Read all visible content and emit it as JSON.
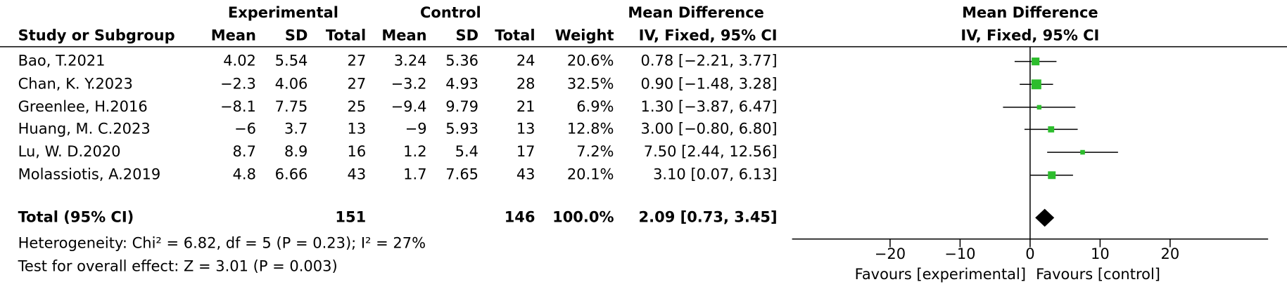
{
  "table": {
    "group_headers": [
      "Experimental",
      "Control",
      "Mean Difference"
    ],
    "columns": [
      "Study or Subgroup",
      "Mean",
      "SD",
      "Total",
      "Mean",
      "SD",
      "Total",
      "Weight",
      "IV, Fixed, 95% CI"
    ],
    "rows": [
      [
        "Bao, T.2021",
        "4.02",
        "5.54",
        "27",
        "3.24",
        "5.36",
        "24",
        "20.6%",
        "0.78 [−2.21, 3.77]"
      ],
      [
        "Chan, K. Y.2023",
        "−2.3",
        "4.06",
        "27",
        "−3.2",
        "4.93",
        "28",
        "32.5%",
        "0.90 [−1.48, 3.28]"
      ],
      [
        "Greenlee, H.2016",
        "−8.1",
        "7.75",
        "25",
        "−9.4",
        "9.79",
        "21",
        "6.9%",
        "1.30 [−3.87, 6.47]"
      ],
      [
        "Huang, M. C.2023",
        "−6",
        "3.7",
        "13",
        "−9",
        "5.93",
        "13",
        "12.8%",
        "3.00 [−0.80, 6.80]"
      ],
      [
        "Lu, W. D.2020",
        "8.7",
        "8.9",
        "16",
        "1.2",
        "5.4",
        "17",
        "7.2%",
        "7.50 [2.44, 12.56]"
      ],
      [
        "Molassiotis, A.2019",
        "4.8",
        "6.66",
        "43",
        "1.7",
        "7.65",
        "43",
        "20.1%",
        "3.10 [0.07, 6.13]"
      ]
    ],
    "total_row": [
      "Total (95% CI)",
      "151",
      "146",
      "100.0%",
      "2.09 [0.73, 3.45]"
    ],
    "heterogeneity": "Heterogeneity: Chi² = 6.82, df = 5 (P = 0.23); I² = 27%",
    "overall_effect": "Test for overall effect: Z = 3.01 (P = 0.003)"
  },
  "chart_data": {
    "type": "forest",
    "title": "Mean Difference",
    "subtitle": "IV, Fixed, 95% CI",
    "color": "#2dbd2d",
    "estimates": [
      0.78,
      0.9,
      1.3,
      3.0,
      7.5,
      3.1
    ],
    "ci_lower": [
      -2.21,
      -1.48,
      -3.87,
      -0.8,
      2.44,
      0.07
    ],
    "ci_upper": [
      3.77,
      3.28,
      6.47,
      6.8,
      12.56,
      6.13
    ],
    "weights": [
      20.6,
      32.5,
      6.9,
      12.8,
      7.2,
      20.1
    ],
    "total": {
      "estimate": 2.09,
      "lower": 0.73,
      "upper": 3.45
    },
    "xlim": [
      -34,
      34
    ],
    "xticks": [
      {
        "value": -20,
        "label": "−20"
      },
      {
        "value": -10,
        "label": "−10"
      },
      0,
      10,
      20
    ],
    "left_label": "Favours [experimental]",
    "right_label": "Favours [control]"
  }
}
